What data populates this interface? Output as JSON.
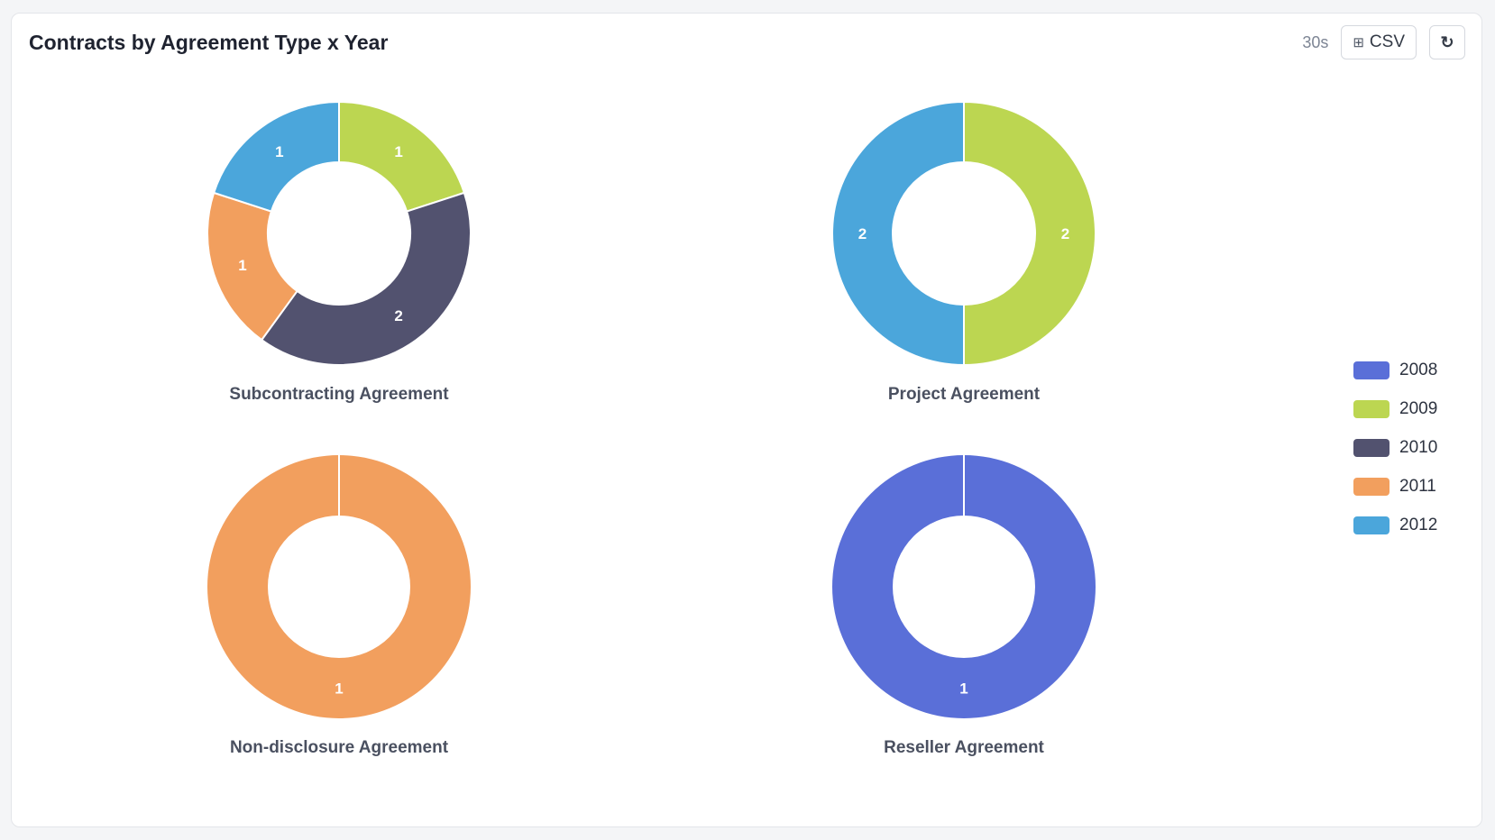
{
  "header": {
    "title": "Contracts by Agreement Type x Year",
    "refresh_interval": "30s",
    "csv_label": "CSV",
    "csv_icon": "grid-icon",
    "refresh_icon": "refresh-icon",
    "refresh_glyph": "↻"
  },
  "chart_data": {
    "type": "pie",
    "variant": "donut",
    "legend_position": "right",
    "series": [
      {
        "name": "2008",
        "color": "#5a6fd8"
      },
      {
        "name": "2009",
        "color": "#bcd651"
      },
      {
        "name": "2010",
        "color": "#52526f"
      },
      {
        "name": "2011",
        "color": "#f29f5e"
      },
      {
        "name": "2012",
        "color": "#4ba6db"
      }
    ],
    "charts": [
      {
        "title": "Subcontracting Agreement",
        "slices": [
          {
            "year": "2009",
            "value": 1
          },
          {
            "year": "2010",
            "value": 2
          },
          {
            "year": "2011",
            "value": 1
          },
          {
            "year": "2012",
            "value": 1
          }
        ]
      },
      {
        "title": "Project Agreement",
        "slices": [
          {
            "year": "2009",
            "value": 2
          },
          {
            "year": "2012",
            "value": 2
          }
        ]
      },
      {
        "title": "Non-disclosure Agreement",
        "slices": [
          {
            "year": "2011",
            "value": 1
          }
        ]
      },
      {
        "title": "Reseller Agreement",
        "slices": [
          {
            "year": "2008",
            "value": 1
          }
        ]
      }
    ]
  }
}
